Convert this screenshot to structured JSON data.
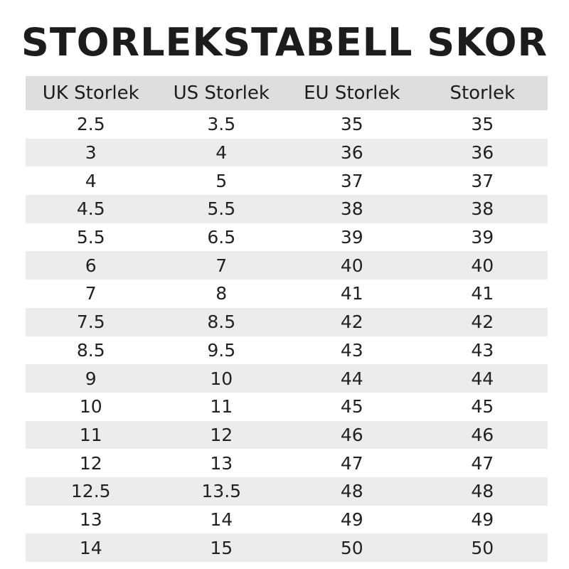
{
  "title": "STORLEKSTABELL SKOR",
  "table": {
    "headers": [
      "UK Storlek",
      "US Storlek",
      "EU Storlek",
      "Storlek"
    ],
    "rows": [
      [
        "2.5",
        "3.5",
        "35",
        "35"
      ],
      [
        "3",
        "4",
        "36",
        "36"
      ],
      [
        "4",
        "5",
        "37",
        "37"
      ],
      [
        "4.5",
        "5.5",
        "38",
        "38"
      ],
      [
        "5.5",
        "6.5",
        "39",
        "39"
      ],
      [
        "6",
        "7",
        "40",
        "40"
      ],
      [
        "7",
        "8",
        "41",
        "41"
      ],
      [
        "7.5",
        "8.5",
        "42",
        "42"
      ],
      [
        "8.5",
        "9.5",
        "43",
        "43"
      ],
      [
        "9",
        "10",
        "44",
        "44"
      ],
      [
        "10",
        "11",
        "45",
        "45"
      ],
      [
        "11",
        "12",
        "46",
        "46"
      ],
      [
        "12",
        "13",
        "47",
        "47"
      ],
      [
        "12.5",
        "13.5",
        "48",
        "48"
      ],
      [
        "13",
        "14",
        "49",
        "49"
      ],
      [
        "14",
        "15",
        "50",
        "50"
      ]
    ]
  },
  "colors": {
    "header_background": "#dedede",
    "stripe_background": "#ececec",
    "text": "#1c1c1c"
  }
}
